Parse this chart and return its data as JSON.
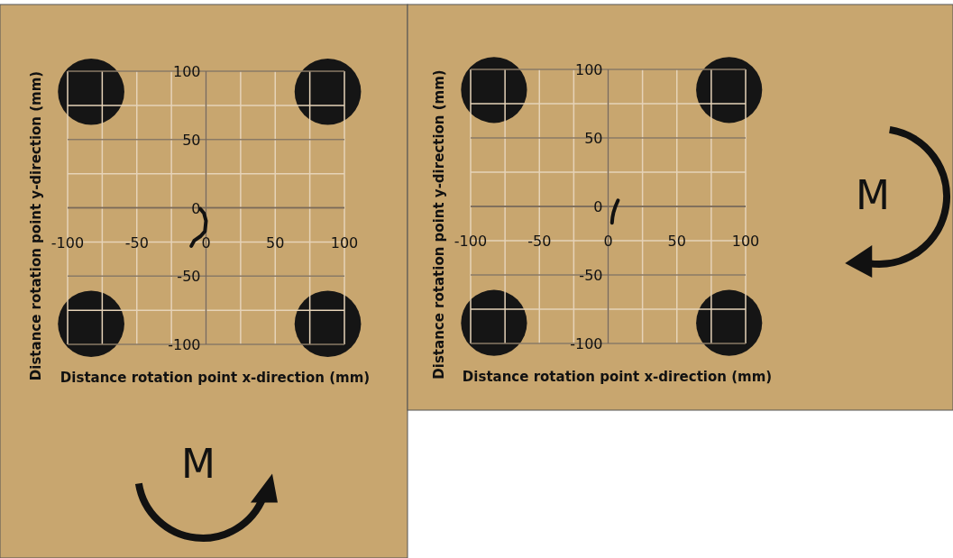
{
  "chart_data": [
    {
      "type": "line",
      "xlabel": "Distance rotation point x-direction (mm)",
      "ylabel": "Distance rotation point y-direction (mm)",
      "xlim": [
        -100,
        100
      ],
      "ylim": [
        -100,
        100
      ],
      "xticks": [
        -100,
        -50,
        0,
        50,
        100
      ],
      "yticks": [
        -100,
        -50,
        0,
        50,
        100
      ],
      "grid": true,
      "marker": "none",
      "annotations": [
        "M"
      ],
      "series": [
        {
          "type": "scatter",
          "marker": "circle",
          "color": "#151515",
          "x": [
            -83,
            88,
            -83,
            88
          ],
          "values": [
            85,
            85,
            -85,
            -85
          ]
        },
        {
          "color": "#111111",
          "x": [
            -4.1,
            -1.5,
            0,
            -0.8,
            -3.9,
            -8.5,
            -10.6
          ],
          "values": [
            -0.8,
            -4,
            -9.6,
            -17.3,
            -20.8,
            -24,
            -28
          ]
        }
      ]
    },
    {
      "type": "line",
      "xlabel": "Distance rotation point x-direction (mm)",
      "ylabel": "Distance rotation point y-direction (mm)",
      "xlim": [
        -100,
        100
      ],
      "ylim": [
        -100,
        100
      ],
      "xticks": [
        -100,
        -50,
        0,
        50,
        100
      ],
      "yticks": [
        -100,
        -50,
        0,
        50,
        100
      ],
      "grid": true,
      "marker": "none",
      "annotations": [
        "M"
      ],
      "series": [
        {
          "type": "scatter",
          "marker": "circle",
          "color": "#151515",
          "x": [
            -83,
            88,
            -83,
            88
          ],
          "values": [
            85,
            85,
            -85,
            -85
          ]
        },
        {
          "color": "#111111",
          "x": [
            7.2,
            5.5,
            3.9,
            3.2,
            2.8
          ],
          "values": [
            4.4,
            0.5,
            -4.4,
            -8,
            -12
          ]
        }
      ]
    }
  ]
}
